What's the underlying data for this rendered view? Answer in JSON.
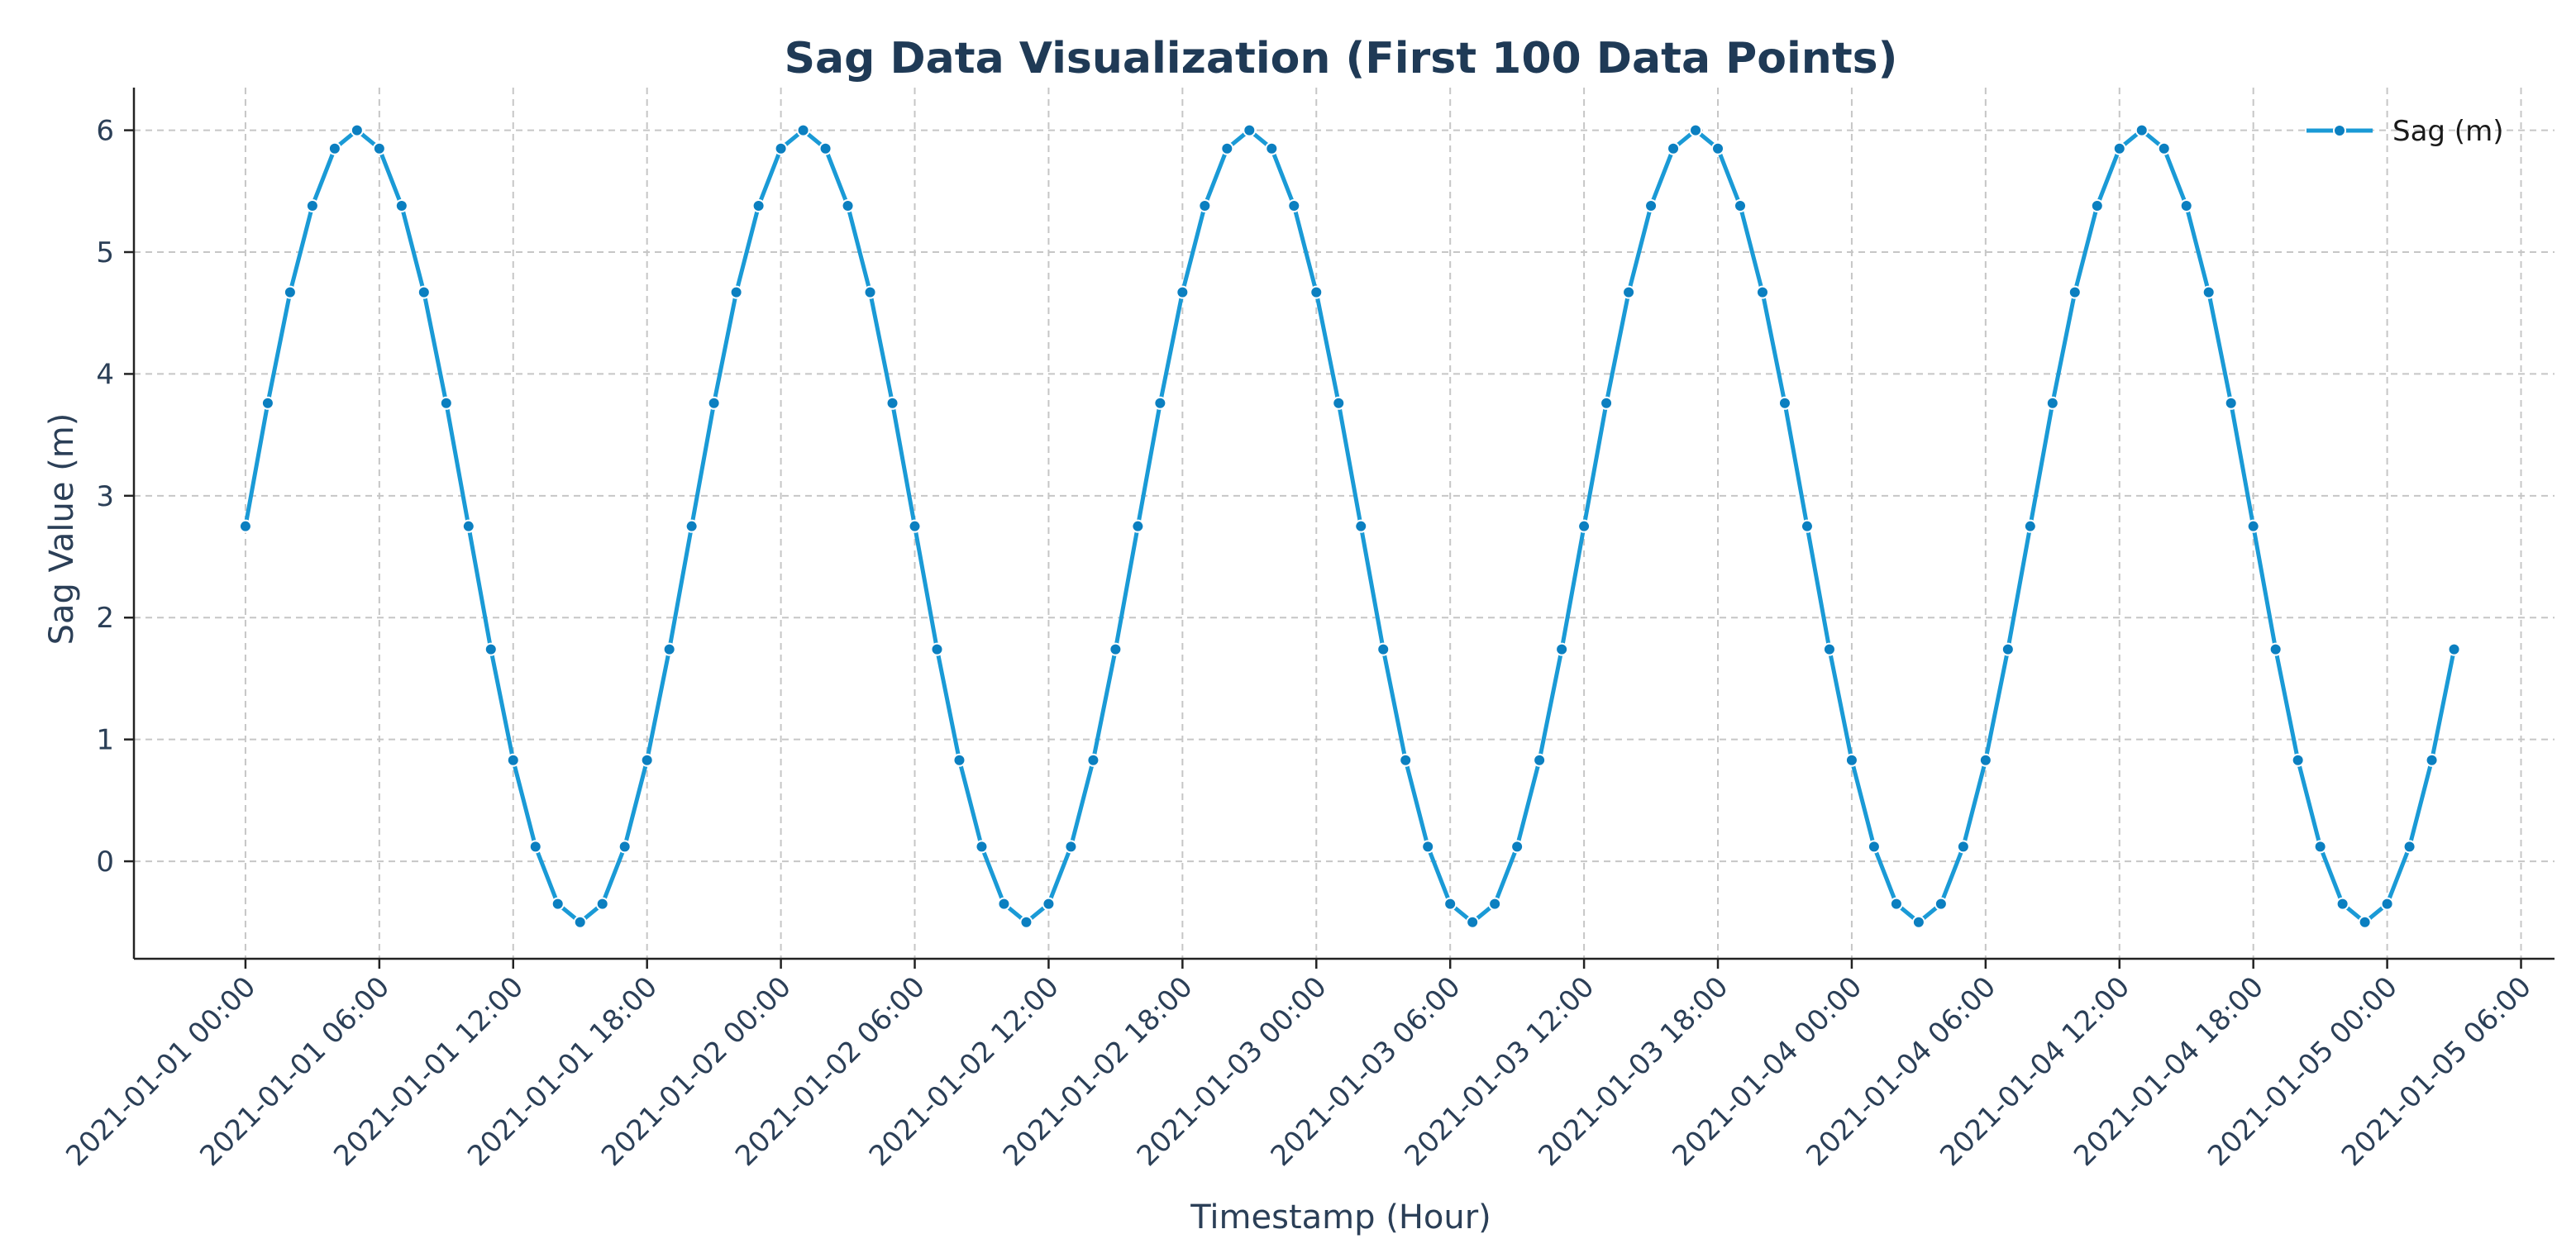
{
  "chart_data": {
    "type": "line",
    "title": "Sag Data Visualization (First 100 Data Points)",
    "xlabel": "Timestamp (Hour)",
    "ylabel": "Sag Value (m)",
    "x_start": "2021-01-01 00:00",
    "x_step_hours": 1,
    "x_ticks": [
      "2021-01-01 00:00",
      "2021-01-01 06:00",
      "2021-01-01 12:00",
      "2021-01-01 18:00",
      "2021-01-02 00:00",
      "2021-01-02 06:00",
      "2021-01-02 12:00",
      "2021-01-02 18:00",
      "2021-01-03 00:00",
      "2021-01-03 06:00",
      "2021-01-03 12:00",
      "2021-01-03 18:00",
      "2021-01-04 00:00",
      "2021-01-04 06:00",
      "2021-01-04 12:00",
      "2021-01-04 18:00",
      "2021-01-05 00:00",
      "2021-01-05 06:00"
    ],
    "y_ticks": [
      0,
      1,
      2,
      3,
      4,
      5,
      6
    ],
    "ylim": [
      -0.8,
      6.35
    ],
    "xlim_hours": [
      -5,
      103.5
    ],
    "grid": true,
    "legend_position": "top-right",
    "series": [
      {
        "name": "Sag (m)",
        "color": "#1a9ad6",
        "marker_color": "#0b7fc0",
        "values": [
          2.75,
          3.76,
          4.67,
          5.38,
          5.85,
          6.0,
          5.85,
          5.38,
          4.67,
          3.76,
          2.75,
          1.74,
          0.83,
          0.12,
          -0.35,
          -0.5,
          -0.35,
          0.12,
          0.83,
          1.74,
          2.75,
          3.76,
          4.67,
          5.38,
          5.85,
          6.0,
          5.85,
          5.38,
          4.67,
          3.76,
          2.75,
          1.74,
          0.83,
          0.12,
          -0.35,
          -0.5,
          -0.35,
          0.12,
          0.83,
          1.74,
          2.75,
          3.76,
          4.67,
          5.38,
          5.85,
          6.0,
          5.85,
          5.38,
          4.67,
          3.76,
          2.75,
          1.74,
          0.83,
          0.12,
          -0.35,
          -0.5,
          -0.35,
          0.12,
          0.83,
          1.74,
          2.75,
          3.76,
          4.67,
          5.38,
          5.85,
          6.0,
          5.85,
          5.38,
          4.67,
          3.76,
          2.75,
          1.74,
          0.83,
          0.12,
          -0.35,
          -0.5,
          -0.35,
          0.12,
          0.83,
          1.74,
          2.75,
          3.76,
          4.67,
          5.38,
          5.85,
          6.0,
          5.85,
          5.38,
          4.67,
          3.76,
          2.75,
          1.74,
          0.83,
          0.12,
          -0.35,
          -0.5,
          -0.35,
          0.12,
          0.83,
          1.74
        ]
      }
    ]
  }
}
